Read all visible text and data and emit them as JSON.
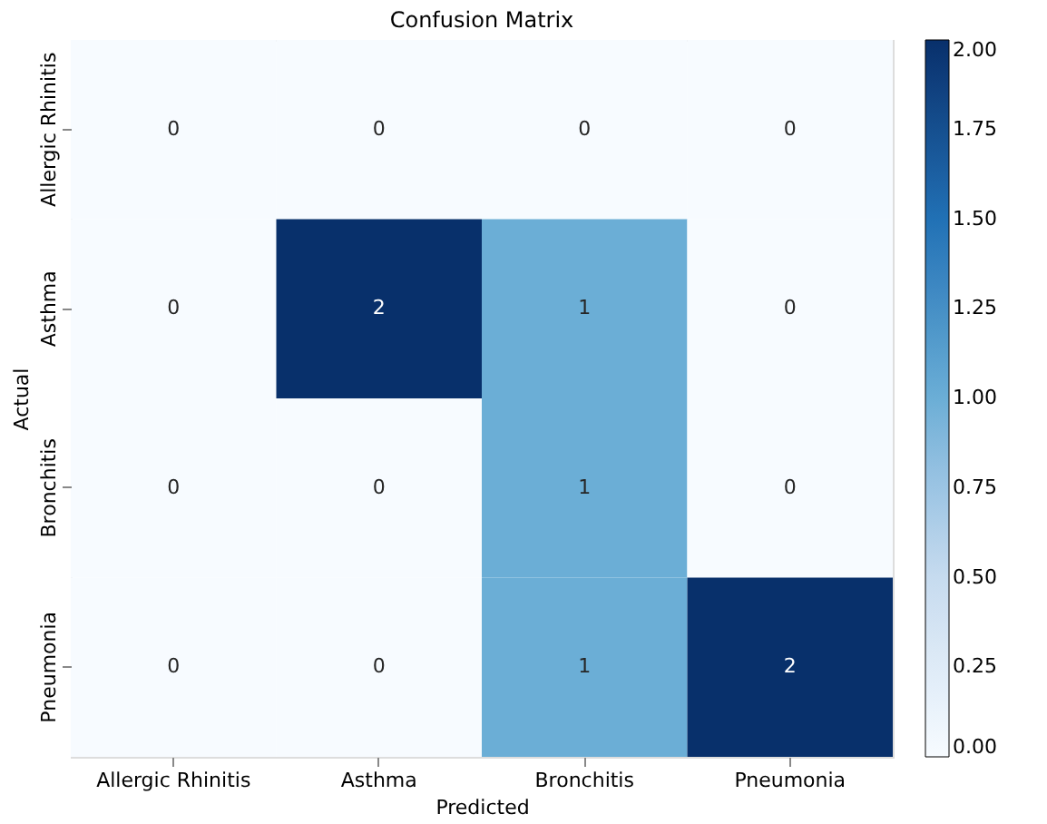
{
  "chart_data": {
    "type": "heatmap",
    "title": "Confusion Matrix",
    "xlabel": "Predicted",
    "ylabel": "Actual",
    "categories": [
      "Allergic Rhinitis",
      "Asthma",
      "Bronchitis",
      "Pneumonia"
    ],
    "y_categories": [
      "Allergic Rhinitis",
      "Asthma",
      "Bronchitis",
      "Pneumonia"
    ],
    "cells": [
      [
        0,
        0,
        0,
        0
      ],
      [
        0,
        2,
        1,
        0
      ],
      [
        0,
        0,
        1,
        0
      ],
      [
        0,
        0,
        1,
        2
      ]
    ],
    "clim": [
      0,
      2
    ],
    "cticks": [
      {
        "value": 0,
        "label": "0.00"
      },
      {
        "value": 0.25,
        "label": "0.25"
      },
      {
        "value": 0.5,
        "label": "0.50"
      },
      {
        "value": 0.75,
        "label": "0.75"
      },
      {
        "value": 1,
        "label": "1.00"
      },
      {
        "value": 1.25,
        "label": "1.25"
      },
      {
        "value": 1.5,
        "label": "1.50"
      },
      {
        "value": 1.75,
        "label": "1.75"
      },
      {
        "value": 2,
        "label": "2.00"
      }
    ],
    "data_labels": true,
    "grid": false
  }
}
